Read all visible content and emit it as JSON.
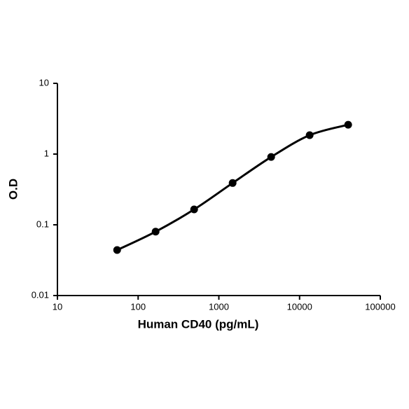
{
  "chart_data": {
    "type": "line",
    "x_label": "Human CD40 (pg/mL)",
    "y_label": "O.D",
    "x": [
      54.9,
      164.6,
      493.8,
      1481.5,
      4444.4,
      13333.3,
      40000
    ],
    "series": [
      {
        "color": "#000000",
        "values": [
          0.044,
          0.08,
          0.165,
          0.39,
          0.91,
          1.85,
          2.6
        ]
      }
    ],
    "xlim": [
      10,
      100000
    ],
    "xticks": [
      10,
      100,
      1000,
      10000,
      100000
    ],
    "ylim": [
      0.01,
      10
    ],
    "yticks": [
      0.01,
      0.1,
      1,
      10
    ],
    "xscale": "log",
    "yscale": "log",
    "grid": false
  }
}
